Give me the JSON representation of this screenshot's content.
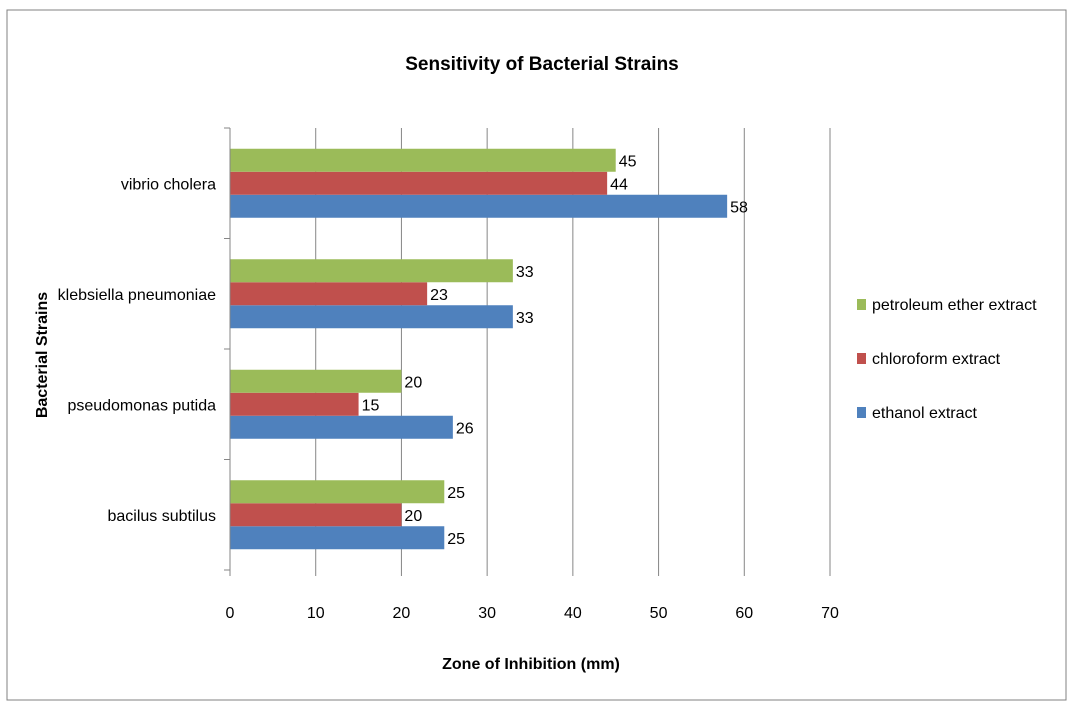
{
  "chart_data": {
    "type": "bar",
    "orientation": "horizontal",
    "title": "Sensitivity of Bacterial Strains",
    "xlabel": "Zone of Inhibition (mm)",
    "ylabel": "Bacterial Strains",
    "xlim": [
      0,
      70
    ],
    "xticks": [
      0,
      10,
      20,
      30,
      40,
      50,
      60,
      70
    ],
    "xtick_labels": [
      "0",
      "10",
      "20",
      "30",
      "40",
      "50",
      "60",
      "70"
    ],
    "grid": "vertical",
    "legend_position": "right",
    "categories": [
      "bacilus subtilus",
      "pseudomonas putida",
      "klebsiella pneumoniae",
      "vibrio cholera"
    ],
    "series": [
      {
        "name": "ethanol extract",
        "color": "#4f81bd",
        "values": [
          25,
          26,
          33,
          58
        ]
      },
      {
        "name": "chloroform extract",
        "color": "#c0504d",
        "values": [
          20,
          15,
          23,
          44
        ]
      },
      {
        "name": "petroleum ether extract",
        "color": "#9bbb59",
        "values": [
          25,
          20,
          33,
          45
        ]
      }
    ],
    "data_labels": true
  }
}
